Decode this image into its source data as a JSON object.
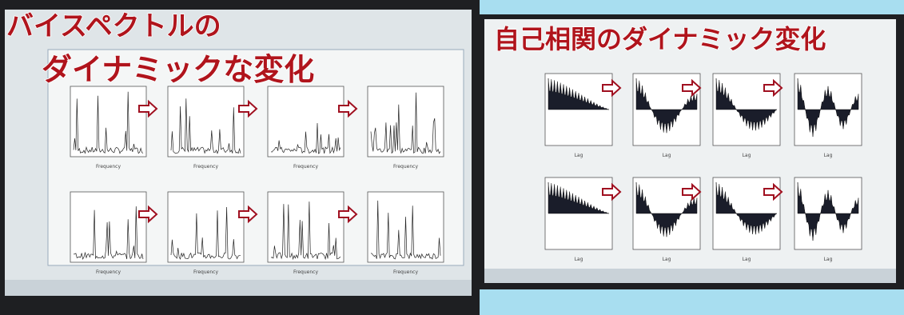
{
  "left": {
    "caption_lines": [
      "バイスペクトルの",
      "ダイナミックな変化"
    ],
    "panels": [
      {
        "xlabel": "Frequency"
      },
      {
        "xlabel": "Frequency"
      },
      {
        "xlabel": "Frequency"
      },
      {
        "xlabel": "Frequency"
      },
      {
        "xlabel": "Frequency"
      },
      {
        "xlabel": "Frequency"
      },
      {
        "xlabel": "Frequency"
      },
      {
        "xlabel": "Frequency"
      }
    ]
  },
  "right": {
    "caption": "自己相関のダイナミック変化",
    "panels": [
      {
        "xlabel": "Lag"
      },
      {
        "xlabel": "Lag"
      },
      {
        "xlabel": "Lag"
      },
      {
        "xlabel": "Lag"
      },
      {
        "xlabel": "Lag"
      },
      {
        "xlabel": "Lag"
      },
      {
        "xlabel": "Lag"
      },
      {
        "xlabel": "Lag"
      }
    ]
  }
}
